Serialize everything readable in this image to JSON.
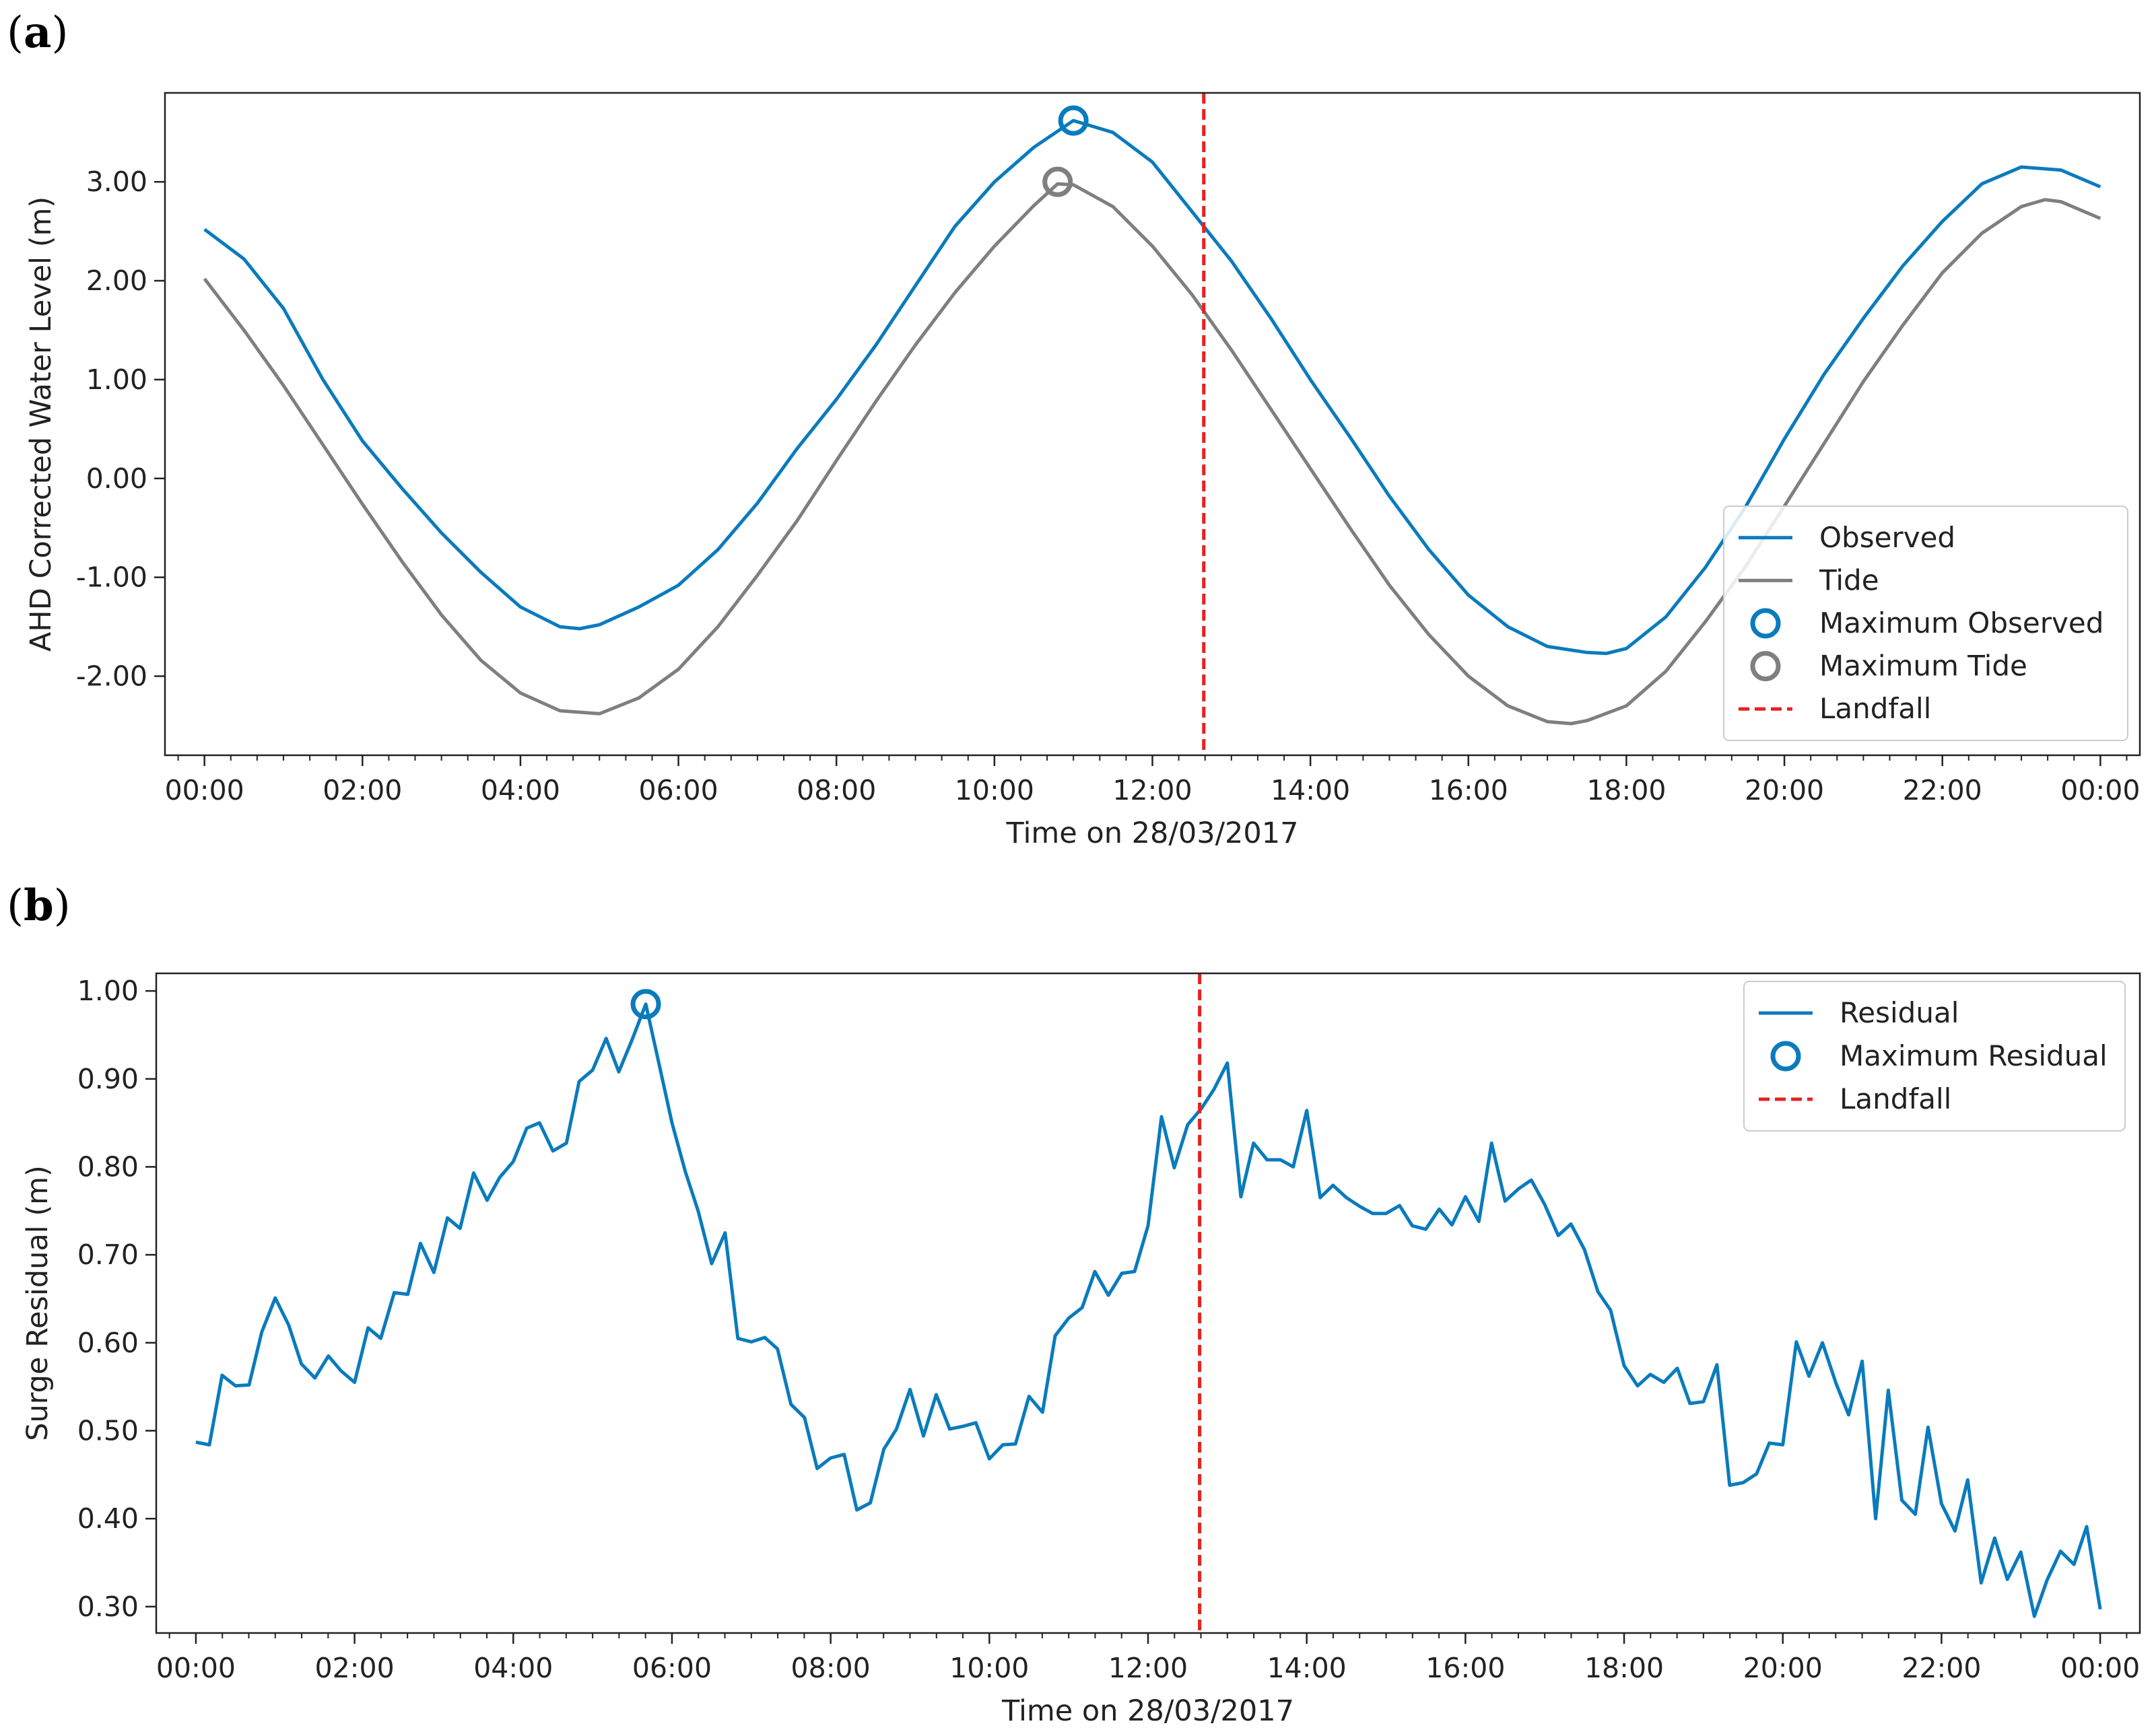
{
  "chart_data": [
    {
      "panel_label": "a",
      "type": "line",
      "xlabel": "Time on 28/03/2017",
      "ylabel": "AHD Corrected Water Level (m)",
      "xlim": [
        -0.5,
        24.5
      ],
      "ylim": [
        -2.8,
        3.9
      ],
      "x_ticks": [
        0,
        2,
        4,
        6,
        8,
        10,
        12,
        14,
        16,
        18,
        20,
        22,
        24
      ],
      "x_tick_labels": [
        "00:00",
        "02:00",
        "04:00",
        "06:00",
        "08:00",
        "10:00",
        "12:00",
        "14:00",
        "16:00",
        "18:00",
        "20:00",
        "22:00",
        "00:00"
      ],
      "y_ticks": [
        -2,
        -1,
        0,
        1,
        2,
        3
      ],
      "y_tick_labels": [
        "-2.00",
        "-1.00",
        "0.00",
        "1.00",
        "2.00",
        "3.00"
      ],
      "series": [
        {
          "name": "Observed",
          "color": "#0a7bbd",
          "x": [
            0,
            0.5,
            1,
            1.5,
            2,
            2.5,
            3,
            3.5,
            4,
            4.5,
            4.75,
            5,
            5.5,
            6,
            6.5,
            7,
            7.5,
            8,
            8.5,
            9,
            9.5,
            10,
            10.5,
            11,
            11.5,
            12,
            12.5,
            13,
            13.5,
            14,
            14.5,
            15,
            15.5,
            16,
            16.5,
            17,
            17.5,
            17.75,
            18,
            18.5,
            19,
            19.5,
            20,
            20.5,
            21,
            21.5,
            22,
            22.5,
            23,
            23.5,
            24
          ],
          "y": [
            2.52,
            2.22,
            1.72,
            1.0,
            0.38,
            -0.1,
            -0.55,
            -0.95,
            -1.3,
            -1.5,
            -1.52,
            -1.48,
            -1.3,
            -1.08,
            -0.72,
            -0.25,
            0.3,
            0.8,
            1.35,
            1.95,
            2.55,
            3.0,
            3.35,
            3.62,
            3.5,
            3.2,
            2.7,
            2.2,
            1.62,
            1.0,
            0.42,
            -0.18,
            -0.72,
            -1.18,
            -1.5,
            -1.7,
            -1.76,
            -1.77,
            -1.72,
            -1.4,
            -0.9,
            -0.3,
            0.4,
            1.05,
            1.62,
            2.15,
            2.6,
            2.98,
            3.15,
            3.12,
            2.95
          ]
        },
        {
          "name": "Tide",
          "color": "#7f7f7f",
          "x": [
            0,
            0.5,
            1,
            1.5,
            2,
            2.5,
            3,
            3.5,
            4,
            4.5,
            5,
            5.5,
            6,
            6.5,
            7,
            7.5,
            8,
            8.5,
            9,
            9.5,
            10,
            10.5,
            10.8,
            11,
            11.5,
            12,
            12.5,
            13,
            13.5,
            14,
            14.5,
            15,
            15.5,
            16,
            16.5,
            17,
            17.3,
            17.5,
            18,
            18.5,
            19,
            19.5,
            20,
            20.5,
            21,
            21.5,
            22,
            22.5,
            23,
            23.3,
            23.5,
            24
          ],
          "y": [
            2.02,
            1.5,
            0.94,
            0.34,
            -0.26,
            -0.84,
            -1.38,
            -1.84,
            -2.17,
            -2.35,
            -2.38,
            -2.22,
            -1.93,
            -1.5,
            -0.98,
            -0.43,
            0.18,
            0.78,
            1.35,
            1.88,
            2.35,
            2.76,
            2.98,
            2.97,
            2.75,
            2.35,
            1.86,
            1.3,
            0.7,
            0.1,
            -0.5,
            -1.08,
            -1.58,
            -2.0,
            -2.3,
            -2.46,
            -2.48,
            -2.45,
            -2.3,
            -1.95,
            -1.45,
            -0.9,
            -0.28,
            0.35,
            0.98,
            1.55,
            2.08,
            2.48,
            2.75,
            2.82,
            2.8,
            2.63
          ]
        }
      ],
      "markers": [
        {
          "name": "Maximum Observed",
          "x": 11.0,
          "y": 3.62,
          "color": "#0a7bbd"
        },
        {
          "name": "Maximum Tide",
          "x": 10.8,
          "y": 3.0,
          "color": "#7f7f7f"
        }
      ],
      "vline": {
        "name": "Landfall",
        "x": 12.65,
        "color": "#e8211e"
      },
      "legend": {
        "position": "lower-right",
        "entries": [
          {
            "label": "Observed",
            "kind": "line",
            "color": "#0a7bbd"
          },
          {
            "label": "Tide",
            "kind": "line",
            "color": "#7f7f7f"
          },
          {
            "label": "Maximum Observed",
            "kind": "marker",
            "color": "#0a7bbd"
          },
          {
            "label": "Maximum Tide",
            "kind": "marker",
            "color": "#7f7f7f"
          },
          {
            "label": "Landfall",
            "kind": "dash",
            "color": "#e8211e"
          }
        ]
      }
    },
    {
      "panel_label": "b",
      "type": "line",
      "xlabel": "Time on 28/03/2017",
      "ylabel": "Surge Residual (m)",
      "xlim": [
        -0.5,
        24.5
      ],
      "ylim": [
        0.27,
        1.02
      ],
      "x_ticks": [
        0,
        2,
        4,
        6,
        8,
        10,
        12,
        14,
        16,
        18,
        20,
        22,
        24
      ],
      "x_tick_labels": [
        "00:00",
        "02:00",
        "04:00",
        "06:00",
        "08:00",
        "10:00",
        "12:00",
        "14:00",
        "16:00",
        "18:00",
        "20:00",
        "22:00",
        "00:00"
      ],
      "y_ticks": [
        0.3,
        0.4,
        0.5,
        0.6,
        0.7,
        0.8,
        0.9,
        1.0
      ],
      "y_tick_labels": [
        "0.30",
        "0.40",
        "0.50",
        "0.60",
        "0.70",
        "0.80",
        "0.90",
        "1.00"
      ],
      "series": [
        {
          "name": "Residual",
          "color": "#0a7bbd",
          "x": [
            0,
            0.17,
            0.33,
            0.5,
            0.67,
            0.83,
            1,
            1.17,
            1.33,
            1.5,
            1.67,
            1.83,
            2,
            2.17,
            2.33,
            2.5,
            2.67,
            2.83,
            3,
            3.17,
            3.33,
            3.5,
            3.67,
            3.83,
            4,
            4.17,
            4.33,
            4.5,
            4.67,
            4.83,
            5,
            5.17,
            5.33,
            5.5,
            5.67,
            5.83,
            6,
            6.17,
            6.33,
            6.5,
            6.67,
            6.83,
            7,
            7.17,
            7.33,
            7.5,
            7.67,
            7.83,
            8,
            8.17,
            8.33,
            8.5,
            8.67,
            8.83,
            9,
            9.17,
            9.33,
            9.5,
            9.67,
            9.83,
            10,
            10.17,
            10.33,
            10.5,
            10.67,
            10.83,
            11,
            11.17,
            11.33,
            11.5,
            11.67,
            11.83,
            12,
            12.17,
            12.33,
            12.5,
            12.67,
            12.83,
            13,
            13.17,
            13.33,
            13.5,
            13.67,
            13.83,
            14,
            14.17,
            14.33,
            14.5,
            14.67,
            14.83,
            15,
            15.17,
            15.33,
            15.5,
            15.67,
            15.83,
            16,
            16.17,
            16.33,
            16.5,
            16.67,
            16.83,
            17,
            17.17,
            17.33,
            17.5,
            17.67,
            17.83,
            18,
            18.17,
            18.33,
            18.5,
            18.67,
            18.83,
            19,
            19.17,
            19.33,
            19.5,
            19.67,
            19.83,
            20,
            20.17,
            20.33,
            20.5,
            20.67,
            20.83,
            21,
            21.17,
            21.33,
            21.5,
            21.67,
            21.83,
            22,
            22.17,
            22.33,
            22.5,
            22.67,
            22.83,
            23,
            23.17,
            23.33,
            23.5,
            23.67,
            23.83,
            24
          ],
          "y": [
            0.487,
            0.484,
            0.563,
            0.551,
            0.552,
            0.612,
            0.651,
            0.62,
            0.576,
            0.56,
            0.585,
            0.568,
            0.555,
            0.617,
            0.605,
            0.657,
            0.655,
            0.713,
            0.68,
            0.742,
            0.73,
            0.793,
            0.762,
            0.788,
            0.806,
            0.844,
            0.85,
            0.818,
            0.827,
            0.897,
            0.91,
            0.946,
            0.908,
            0.945,
            0.985,
            0.92,
            0.85,
            0.794,
            0.75,
            0.69,
            0.725,
            0.605,
            0.601,
            0.606,
            0.593,
            0.53,
            0.515,
            0.457,
            0.469,
            0.473,
            0.41,
            0.418,
            0.479,
            0.502,
            0.547,
            0.494,
            0.541,
            0.502,
            0.505,
            0.509,
            0.468,
            0.484,
            0.485,
            0.539,
            0.521,
            0.608,
            0.628,
            0.64,
            0.681,
            0.654,
            0.679,
            0.681,
            0.733,
            0.857,
            0.799,
            0.848,
            0.866,
            0.888,
            0.918,
            0.766,
            0.827,
            0.808,
            0.808,
            0.8,
            0.864,
            0.765,
            0.779,
            0.765,
            0.755,
            0.747,
            0.747,
            0.756,
            0.733,
            0.729,
            0.752,
            0.734,
            0.766,
            0.738,
            0.827,
            0.761,
            0.775,
            0.785,
            0.757,
            0.722,
            0.735,
            0.706,
            0.658,
            0.637,
            0.574,
            0.551,
            0.564,
            0.555,
            0.571,
            0.531,
            0.533,
            0.575,
            0.438,
            0.441,
            0.451,
            0.486,
            0.484,
            0.601,
            0.562,
            0.6,
            0.554,
            0.518,
            0.579,
            0.4,
            0.546,
            0.421,
            0.405,
            0.504,
            0.417,
            0.386,
            0.444,
            0.327,
            0.378,
            0.331,
            0.362,
            0.289,
            0.33,
            0.363,
            0.348,
            0.391,
            0.297
          ]
        }
      ],
      "markers": [
        {
          "name": "Maximum Residual",
          "x": 5.67,
          "y": 0.985,
          "color": "#0a7bbd"
        }
      ],
      "vline": {
        "name": "Landfall",
        "x": 12.65,
        "color": "#e8211e"
      },
      "legend": {
        "position": "upper-right",
        "entries": [
          {
            "label": "Residual",
            "kind": "line",
            "color": "#0a7bbd"
          },
          {
            "label": "Maximum Residual",
            "kind": "marker",
            "color": "#0a7bbd"
          },
          {
            "label": "Landfall",
            "kind": "dash",
            "color": "#e8211e"
          }
        ]
      }
    }
  ]
}
